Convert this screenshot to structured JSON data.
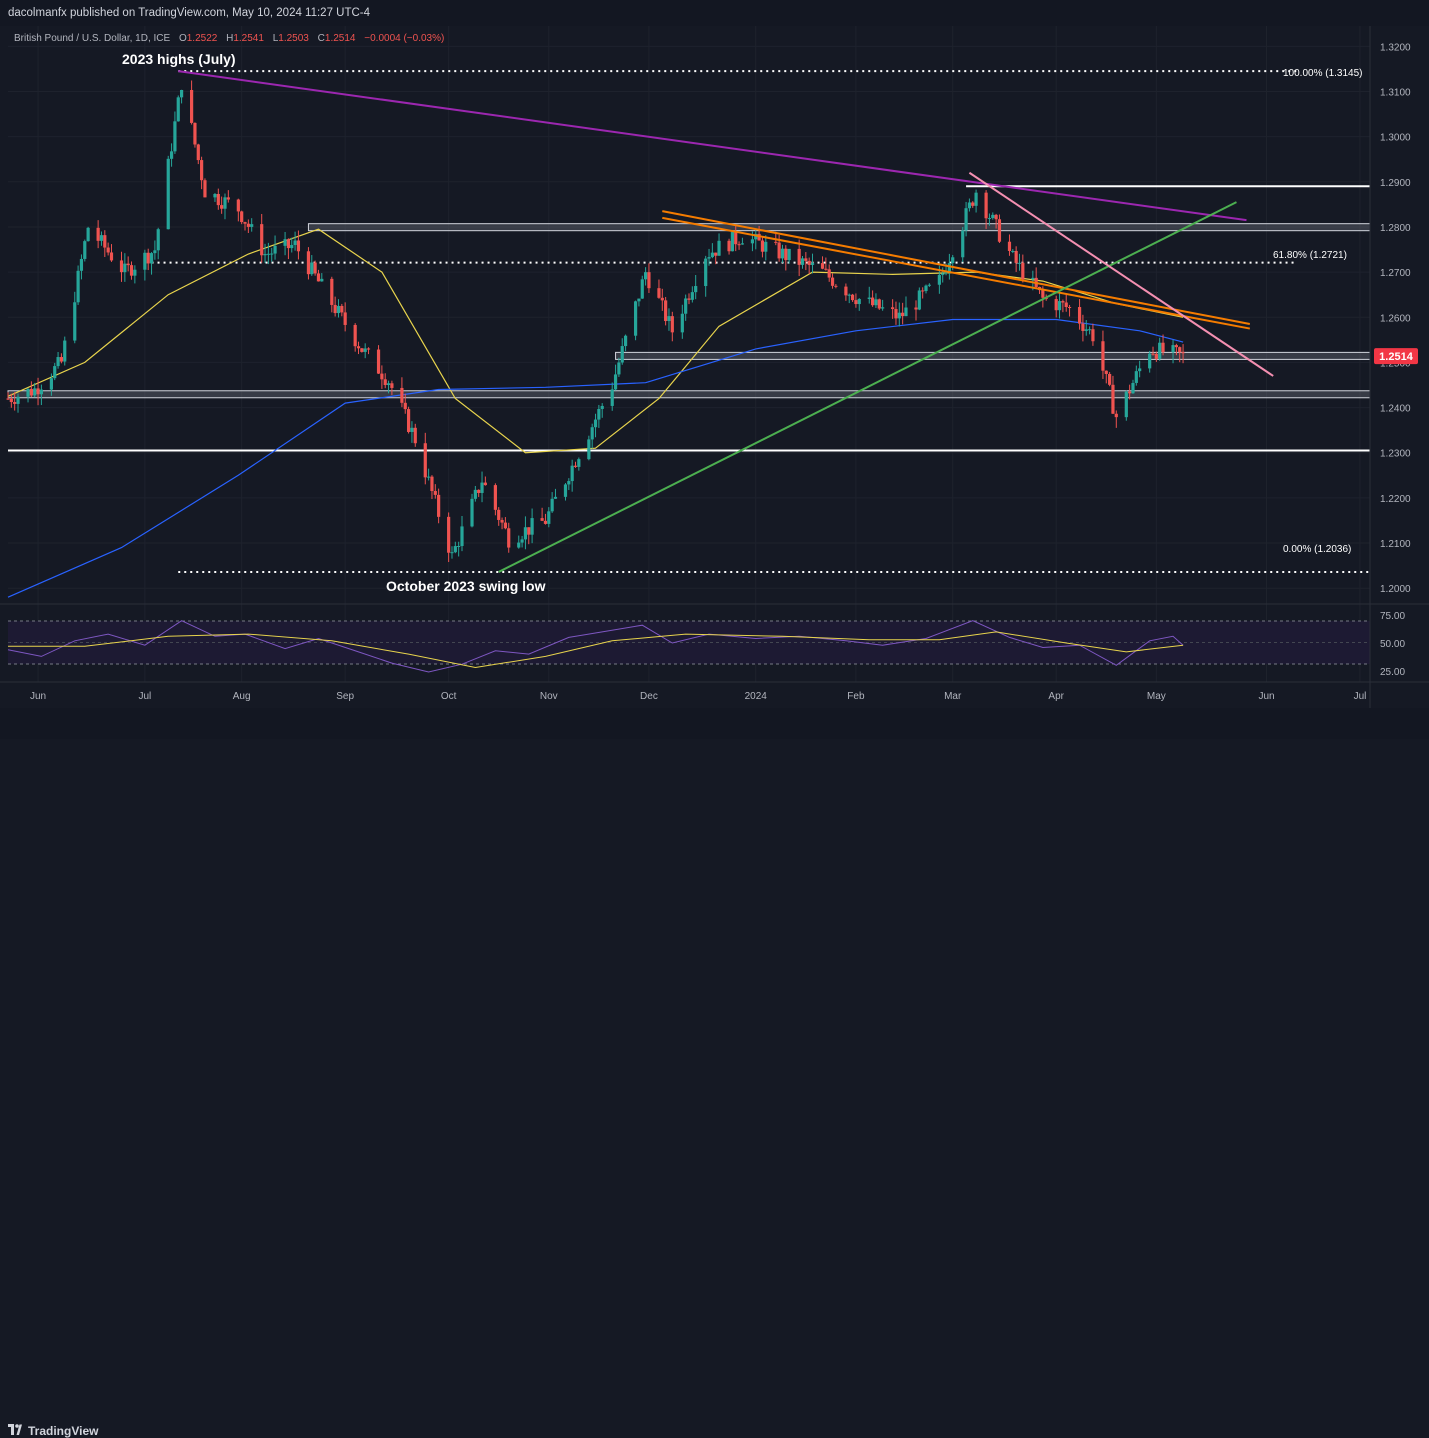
{
  "header": {
    "published": "dacolmanfx published on TradingView.com, May 10, 2024 11:27 UTC-4"
  },
  "symbol_bar": {
    "name": "British Pound / U.S. Dollar, 1D, ICE",
    "o_label": "O",
    "o_value": "1.2522",
    "h_label": "H",
    "h_value": "1.2541",
    "l_label": "L",
    "l_value": "1.2503",
    "c_label": "C",
    "c_value": "1.2514",
    "change": "−0.0004 (−0.03%)"
  },
  "annotations": {
    "highs": "2023 highs (July)",
    "lows": "October 2023 swing low",
    "fib_100": "100.00% (1.3145)",
    "fib_618": "61.80% (1.2721)",
    "fib_0": "0.00% (1.2036)",
    "last_price": "1.2514"
  },
  "colors": {
    "background": "#151924",
    "up": "#26a69a",
    "down": "#ef5350",
    "ma50": "#e8d44d",
    "ma200": "#2962ff",
    "purple_trend": "#9c27b0",
    "orange_channel": "#f57c00",
    "green_trend": "#4caf50",
    "pink_trend": "#f48fb1",
    "rsi": "#7e57c2",
    "rsi_ma": "#e8d44d",
    "last_price_label": "#f23645"
  },
  "footer": {
    "brand": "TradingView",
    "icon": "tradingview-logo-icon"
  },
  "chart_data": {
    "type": "candlestick",
    "price_axis": {
      "range": [
        1.1965,
        1.3245
      ],
      "ticks": [
        "1.3200",
        "1.3100",
        "1.3000",
        "1.2900",
        "1.2800",
        "1.2700",
        "1.2600",
        "1.2500",
        "1.2400",
        "1.2300",
        "1.2200",
        "1.2100",
        "1.2000"
      ]
    },
    "time_axis": {
      "range": [
        "2023-05-23",
        "2024-07-04"
      ],
      "ticks": [
        {
          "label": "Jun",
          "date": "2023-06-01"
        },
        {
          "label": "Jul",
          "date": "2023-07-03"
        },
        {
          "label": "Aug",
          "date": "2023-08-01"
        },
        {
          "label": "Sep",
          "date": "2023-09-01"
        },
        {
          "label": "Oct",
          "date": "2023-10-02"
        },
        {
          "label": "Nov",
          "date": "2023-11-01"
        },
        {
          "label": "Dec",
          "date": "2023-12-01"
        },
        {
          "label": "2024",
          "date": "2024-01-02"
        },
        {
          "label": "Feb",
          "date": "2024-02-01"
        },
        {
          "label": "Mar",
          "date": "2024-03-01"
        },
        {
          "label": "Apr",
          "date": "2024-04-01"
        },
        {
          "label": "May",
          "date": "2024-05-01"
        },
        {
          "label": "Jun",
          "date": "2024-06-03"
        },
        {
          "label": "Jul",
          "date": "2024-07-01"
        }
      ]
    },
    "close_path": [
      [
        "2023-05-23",
        1.242
      ],
      [
        "2023-05-31",
        1.244
      ],
      [
        "2023-06-08",
        1.25
      ],
      [
        "2023-06-16",
        1.28
      ],
      [
        "2023-06-27",
        1.27
      ],
      [
        "2023-07-06",
        1.275
      ],
      [
        "2023-07-14",
        1.312
      ],
      [
        "2023-07-21",
        1.288
      ],
      [
        "2023-07-31",
        1.284
      ],
      [
        "2023-08-08",
        1.274
      ],
      [
        "2023-08-17",
        1.276
      ],
      [
        "2023-08-29",
        1.262
      ],
      [
        "2023-09-06",
        1.253
      ],
      [
        "2023-09-14",
        1.246
      ],
      [
        "2023-09-22",
        1.233
      ],
      [
        "2023-10-03",
        1.207
      ],
      [
        "2023-10-12",
        1.224
      ],
      [
        "2023-10-20",
        1.211
      ],
      [
        "2023-10-31",
        1.215
      ],
      [
        "2023-11-10",
        1.23
      ],
      [
        "2023-11-20",
        1.245
      ],
      [
        "2023-11-30",
        1.27
      ],
      [
        "2023-12-08",
        1.257
      ],
      [
        "2023-12-18",
        1.274
      ],
      [
        "2023-12-29",
        1.278
      ],
      [
        "2024-01-10",
        1.274
      ],
      [
        "2024-01-22",
        1.27
      ],
      [
        "2024-02-02",
        1.264
      ],
      [
        "2024-02-14",
        1.26
      ],
      [
        "2024-02-26",
        1.268
      ],
      [
        "2024-03-08",
        1.288
      ],
      [
        "2024-03-19",
        1.273
      ],
      [
        "2024-03-28",
        1.264
      ],
      [
        "2024-04-05",
        1.262
      ],
      [
        "2024-04-12",
        1.256
      ],
      [
        "2024-04-19",
        1.238
      ],
      [
        "2024-04-29",
        1.253
      ],
      [
        "2024-05-09",
        1.2514
      ]
    ],
    "horizontal_levels": [
      {
        "name": "fib-100",
        "value": 1.3145,
        "style": "dotted",
        "from": "2023-07-13",
        "to": "2024-06-12"
      },
      {
        "name": "resistance-1.2890",
        "value": 1.289,
        "style": "solid",
        "from": "2024-03-05",
        "to": "2024-07-04"
      },
      {
        "name": "zone-1.2800",
        "value": [
          1.2795,
          1.2805
        ],
        "style": "box",
        "from": "2023-08-21",
        "to": "2024-07-04"
      },
      {
        "name": "fib-618",
        "value": 1.2721,
        "style": "dotted",
        "from": "2023-07-05",
        "to": "2024-06-12"
      },
      {
        "name": "zone-1.2515",
        "value": [
          1.251,
          1.252
        ],
        "style": "box",
        "from": "2023-11-21",
        "to": "2024-07-04"
      },
      {
        "name": "zone-1.2430",
        "value": [
          1.2425,
          1.2435
        ],
        "style": "box",
        "from": "2023-05-23",
        "to": "2024-07-04"
      },
      {
        "name": "support-1.2305",
        "value": 1.2305,
        "style": "solid",
        "from": "2023-05-23",
        "to": "2024-07-04"
      },
      {
        "name": "fib-0",
        "value": 1.2036,
        "style": "dotted",
        "from": "2023-07-13",
        "to": "2024-07-04"
      }
    ],
    "trendlines": [
      {
        "name": "purple-downtrend",
        "color": "purple_trend",
        "points": [
          [
            "2023-07-13",
            1.3145
          ],
          [
            "2024-05-28",
            1.2815
          ]
        ]
      },
      {
        "name": "orange-upper",
        "color": "orange_channel",
        "points": [
          [
            "2023-12-05",
            1.2835
          ],
          [
            "2024-05-29",
            1.2585
          ]
        ]
      },
      {
        "name": "orange-lower",
        "color": "orange_channel",
        "points": [
          [
            "2023-12-05",
            1.282
          ],
          [
            "2024-05-29",
            1.2575
          ]
        ]
      },
      {
        "name": "green-uptrend",
        "color": "green_trend",
        "points": [
          [
            "2023-10-17",
            1.2036
          ],
          [
            "2024-05-25",
            1.2855
          ]
        ]
      },
      {
        "name": "pink-downtrend",
        "color": "pink_trend",
        "points": [
          [
            "2024-03-06",
            1.292
          ],
          [
            "2024-06-05",
            1.247
          ]
        ]
      }
    ],
    "moving_averages": [
      {
        "name": "MA50",
        "color": "ma50",
        "points": [
          [
            "2023-05-23",
            1.2425
          ],
          [
            "2023-06-15",
            1.25
          ],
          [
            "2023-07-10",
            1.265
          ],
          [
            "2023-08-03",
            1.274
          ],
          [
            "2023-08-24",
            1.2795
          ],
          [
            "2023-09-12",
            1.27
          ],
          [
            "2023-10-04",
            1.242
          ],
          [
            "2023-10-25",
            1.23
          ],
          [
            "2023-11-15",
            1.231
          ],
          [
            "2023-12-04",
            1.242
          ],
          [
            "2023-12-22",
            1.258
          ],
          [
            "2024-01-19",
            1.27
          ],
          [
            "2024-02-12",
            1.2695
          ],
          [
            "2024-03-08",
            1.27
          ],
          [
            "2024-03-28",
            1.268
          ],
          [
            "2024-04-19",
            1.263
          ],
          [
            "2024-05-09",
            1.26
          ]
        ]
      },
      {
        "name": "MA200",
        "color": "ma200",
        "points": [
          [
            "2023-05-23",
            1.198
          ],
          [
            "2023-06-26",
            1.209
          ],
          [
            "2023-07-31",
            1.225
          ],
          [
            "2023-09-01",
            1.241
          ],
          [
            "2023-09-29",
            1.244
          ],
          [
            "2023-10-31",
            1.2445
          ],
          [
            "2023-11-30",
            1.2455
          ],
          [
            "2024-01-02",
            1.253
          ],
          [
            "2024-02-01",
            1.257
          ],
          [
            "2024-03-01",
            1.2595
          ],
          [
            "2024-04-01",
            1.2595
          ],
          [
            "2024-04-26",
            1.257
          ],
          [
            "2024-05-09",
            1.2545
          ]
        ]
      }
    ],
    "rsi": {
      "ticks": [
        "75.00",
        "50.00",
        "25.00"
      ],
      "range": [
        15,
        85
      ],
      "overbought": 70,
      "oversold": 30,
      "points": [
        [
          "2023-05-23",
          44
        ],
        [
          "2023-06-02",
          38
        ],
        [
          "2023-06-12",
          52
        ],
        [
          "2023-06-22",
          58
        ],
        [
          "2023-07-03",
          48
        ],
        [
          "2023-07-14",
          70
        ],
        [
          "2023-07-24",
          56
        ],
        [
          "2023-08-02",
          58
        ],
        [
          "2023-08-14",
          45
        ],
        [
          "2023-08-24",
          54
        ],
        [
          "2023-09-05",
          42
        ],
        [
          "2023-09-15",
          32
        ],
        [
          "2023-09-26",
          24
        ],
        [
          "2023-10-06",
          31
        ],
        [
          "2023-10-16",
          43
        ],
        [
          "2023-10-26",
          40
        ],
        [
          "2023-11-07",
          55
        ],
        [
          "2023-11-17",
          60
        ],
        [
          "2023-11-29",
          66
        ],
        [
          "2023-12-08",
          50
        ],
        [
          "2023-12-19",
          58
        ],
        [
          "2024-01-02",
          54
        ],
        [
          "2024-01-15",
          56
        ],
        [
          "2024-01-29",
          52
        ],
        [
          "2024-02-09",
          48
        ],
        [
          "2024-02-22",
          54
        ],
        [
          "2024-03-07",
          70
        ],
        [
          "2024-03-18",
          55
        ],
        [
          "2024-03-28",
          46
        ],
        [
          "2024-04-08",
          48
        ],
        [
          "2024-04-19",
          30
        ],
        [
          "2024-04-29",
          52
        ],
        [
          "2024-05-06",
          56
        ],
        [
          "2024-05-09",
          48
        ]
      ],
      "ma_points": [
        [
          "2023-05-23",
          47
        ],
        [
          "2023-06-15",
          47
        ],
        [
          "2023-07-10",
          56
        ],
        [
          "2023-08-03",
          58
        ],
        [
          "2023-08-28",
          52
        ],
        [
          "2023-09-20",
          40
        ],
        [
          "2023-10-10",
          28
        ],
        [
          "2023-10-31",
          38
        ],
        [
          "2023-11-20",
          52
        ],
        [
          "2023-12-12",
          58
        ],
        [
          "2024-01-10",
          56
        ],
        [
          "2024-02-05",
          53
        ],
        [
          "2024-02-26",
          53
        ],
        [
          "2024-03-14",
          60
        ],
        [
          "2024-04-04",
          50
        ],
        [
          "2024-04-22",
          42
        ],
        [
          "2024-05-09",
          48
        ]
      ]
    }
  }
}
